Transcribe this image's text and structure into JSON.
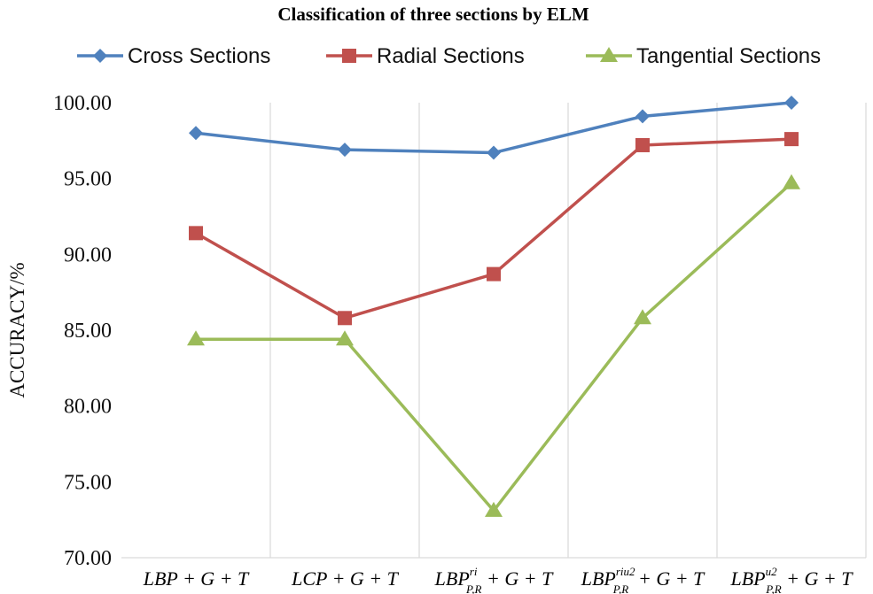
{
  "chart_data": {
    "type": "line",
    "title": "Classification of three sections by ELM",
    "ylabel": "ACCURACY/%",
    "xlabel": "",
    "ylim": [
      70,
      100
    ],
    "yticks": [
      "70.00",
      "75.00",
      "80.00",
      "85.00",
      "90.00",
      "95.00",
      "100.00"
    ],
    "grid": "vertical",
    "legend_position": "top",
    "categories": [
      {
        "base": "LBP",
        "sup": "",
        "sub": "",
        "rest": " + G + T"
      },
      {
        "base": "LCP",
        "sup": "",
        "sub": "",
        "rest": " + G + T"
      },
      {
        "base": "LBP",
        "sup": "ri",
        "sub": "P,R",
        "rest": " + G + T"
      },
      {
        "base": "LBP",
        "sup": "riu2",
        "sub": "P,R",
        "rest": " + G + T"
      },
      {
        "base": "LBP",
        "sup": "u2",
        "sub": "P,R",
        "rest": " + G + T"
      }
    ],
    "series": [
      {
        "name": "Cross Sections",
        "color": "#4f81bd",
        "marker": "diamond",
        "values": [
          98.0,
          96.9,
          96.7,
          99.1,
          100.0
        ]
      },
      {
        "name": "Radial Sections",
        "color": "#c0504d",
        "marker": "square",
        "values": [
          91.4,
          85.8,
          88.7,
          97.2,
          97.6
        ]
      },
      {
        "name": "Tangential Sections",
        "color": "#9bbb59",
        "marker": "triangle",
        "values": [
          84.4,
          84.4,
          73.1,
          85.8,
          94.7
        ]
      }
    ]
  }
}
